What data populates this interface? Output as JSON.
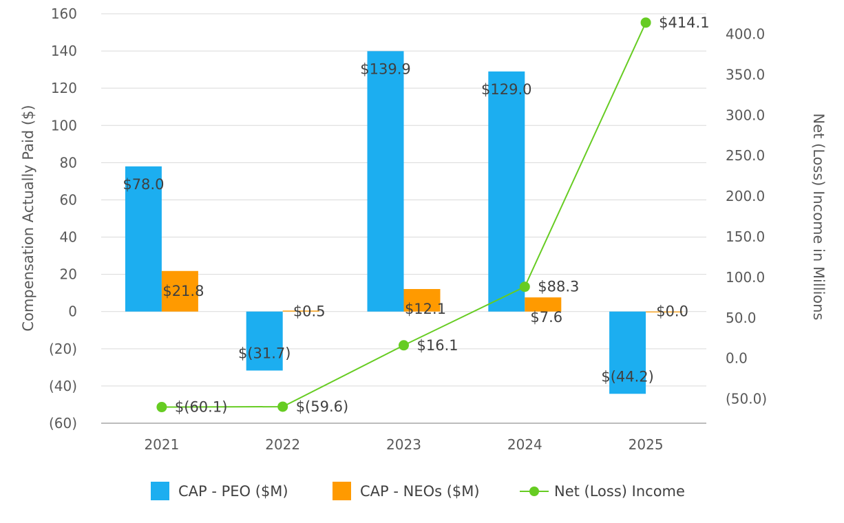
{
  "chart_data": {
    "type": "bar",
    "categories": [
      "2021",
      "2022",
      "2023",
      "2024",
      "2025"
    ],
    "series": [
      {
        "name": "CAP - PEO ($M)",
        "kind": "bar",
        "axis": "left",
        "color": "#1CAEF0",
        "values": [
          78.0,
          -31.7,
          139.9,
          129.0,
          -44.2
        ],
        "labels": [
          "$78.0",
          "$(31.7)",
          "$139.9",
          "$129.0",
          "$(44.2)"
        ]
      },
      {
        "name": "CAP - NEOs ($M)",
        "kind": "bar",
        "axis": "left",
        "color": "#FF9A00",
        "values": [
          21.8,
          0.5,
          12.1,
          7.6,
          0.0
        ],
        "labels": [
          "$21.8",
          "$0.5",
          "$12.1",
          "$7.6",
          "$0.0"
        ]
      },
      {
        "name": "Net (Loss) Income",
        "kind": "line",
        "axis": "right",
        "color": "#66CC22",
        "values": [
          -60.1,
          -59.6,
          16.1,
          88.3,
          414.1
        ],
        "labels": [
          "$(60.1)",
          "$(59.6)",
          "$16.1",
          "$88.3",
          "$414.1"
        ]
      }
    ],
    "left_axis": {
      "title": "Compensation Actually Paid ($)",
      "min": -60,
      "max": 160,
      "ticks": [
        160,
        140,
        120,
        100,
        80,
        60,
        40,
        20,
        0,
        -20,
        -40,
        -60
      ],
      "tick_labels": [
        "160",
        "140",
        "120",
        "100",
        "80",
        "60",
        "40",
        "20",
        "0",
        "(20)",
        "(40)",
        "(60)"
      ]
    },
    "right_axis": {
      "title": "Net (Loss) Income in Millions",
      "min": -80,
      "max": 425,
      "ticks": [
        400,
        350,
        300,
        250,
        200,
        150,
        100,
        50,
        0,
        -50
      ],
      "tick_labels": [
        "400.0",
        "350.0",
        "300.0",
        "250.0",
        "200.0",
        "150.0",
        "100.0",
        "50.0",
        "0.0",
        "(50.0)"
      ]
    },
    "grid": true,
    "legend": "bottom"
  }
}
